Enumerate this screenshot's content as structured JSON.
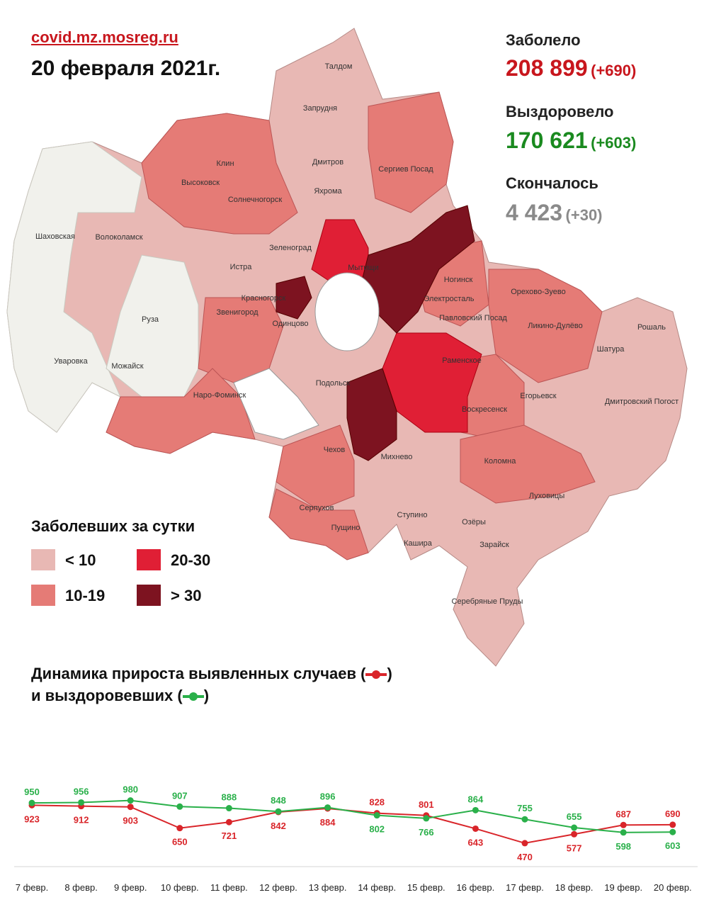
{
  "header": {
    "site": "covid.mz.mosreg.ru",
    "date": "20 февраля 2021г."
  },
  "stats": {
    "infected": {
      "label": "Заболело",
      "value": "208 899",
      "delta": "(+690)",
      "color": "#c8161d"
    },
    "recovered": {
      "label": "Выздоровело",
      "value": "170 621",
      "delta": "(+603)",
      "color": "#1a8a1f"
    },
    "died": {
      "label": "Скончалось",
      "value": "4 423",
      "delta": "(+30)",
      "color": "#8a8a8a"
    }
  },
  "map": {
    "region_labels": [
      "Талдом",
      "Запрудня",
      "Дмитров",
      "Яхрома",
      "Сергиев Посад",
      "Клин",
      "Высоковск",
      "Солнечногорск",
      "Шаховская",
      "Волоколамск",
      "Зеленоград",
      "Истра",
      "Мытищи",
      "Ногинск",
      "Электросталь",
      "Орехово-Зуево",
      "Павловский Посад",
      "Ликино-Дулёво",
      "Рошаль",
      "Красногорск",
      "Звенигород",
      "Одинцово",
      "Руза",
      "Уваровка",
      "Можайск",
      "Наро-Фоминск",
      "Раменское",
      "Шатура",
      "Подольск",
      "Егорьевск",
      "Воскресенск",
      "Дмитровский Погост",
      "Чехов",
      "Михнево",
      "Коломна",
      "Серпухов",
      "Пущино",
      "Ступино",
      "Озёры",
      "Луховицы",
      "Кашира",
      "Зарайск",
      "Серебряные Пруды"
    ],
    "colors": {
      "lt10": "#e8b8b4",
      "10_19": "#e57b76",
      "20_30": "#e01f35",
      "gt30": "#7d1320",
      "none": "#f1f1ec"
    }
  },
  "legend": {
    "title": "Заболевших за сутки",
    "items": [
      {
        "label": "< 10",
        "color": "#e8b8b4"
      },
      {
        "label": "20-30",
        "color": "#e01f35"
      },
      {
        "label": "10-19",
        "color": "#e57b76"
      },
      {
        "label": "> 30",
        "color": "#7d1320"
      }
    ]
  },
  "dynamics": {
    "title_line1_prefix": "Динамика прироста выявленных случаев (",
    "title_line1_suffix": ")",
    "title_line2_prefix": "и выздоровевших (",
    "title_line2_suffix": ")"
  },
  "chart_data": {
    "type": "line",
    "categories": [
      "7 февр.",
      "8 февр.",
      "9 февр.",
      "10 февр.",
      "11 февр.",
      "12 февр.",
      "13 февр.",
      "14 февр.",
      "15 февр.",
      "16 февр.",
      "17 февр.",
      "18 февр.",
      "19 февр.",
      "20 февр."
    ],
    "series": [
      {
        "key": "cases",
        "color": "#d9252a",
        "values": [
          923,
          912,
          903,
          650,
          721,
          842,
          884,
          828,
          801,
          643,
          470,
          577,
          687,
          690
        ]
      },
      {
        "key": "recovered",
        "color": "#2ab04a",
        "values": [
          950,
          956,
          980,
          907,
          888,
          848,
          896,
          802,
          766,
          864,
          755,
          655,
          598,
          603
        ]
      }
    ],
    "ylim": [
      300,
      1400
    ]
  }
}
